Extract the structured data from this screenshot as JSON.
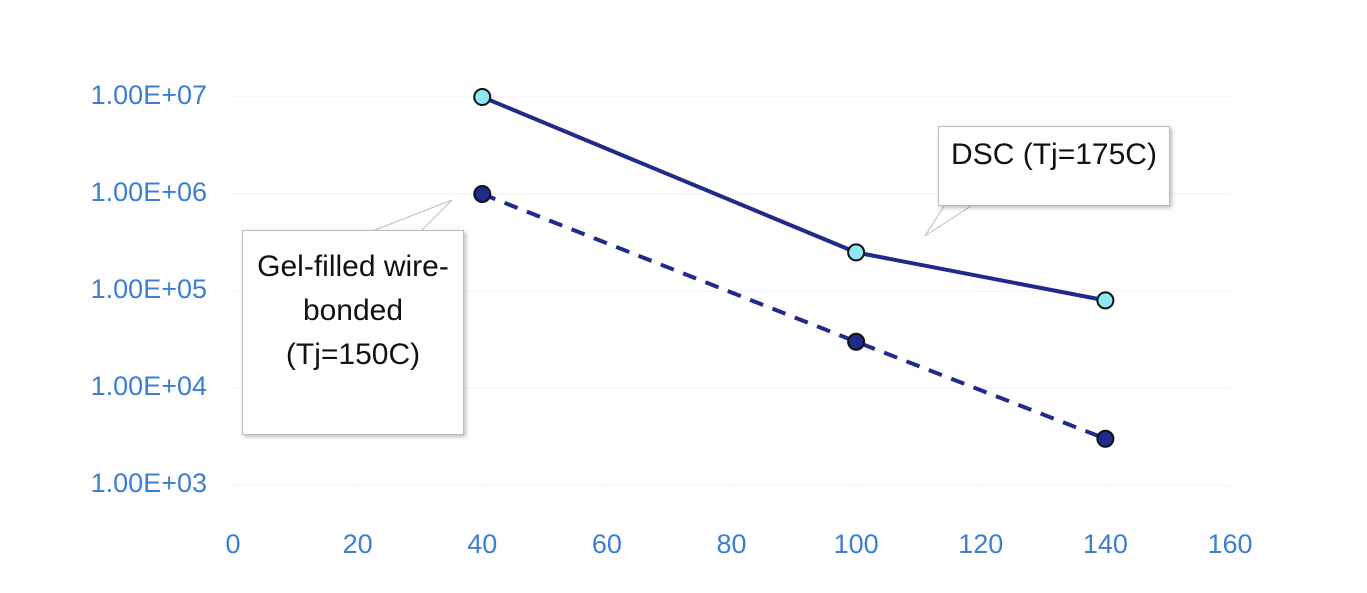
{
  "chart_data": {
    "type": "line",
    "x": [
      40,
      100,
      140
    ],
    "series": [
      {
        "name": "DSC (Tj=175C)",
        "color": "#1f2a8a",
        "marker_color": "#8ee8f2",
        "line_style": "solid",
        "values": [
          10000000,
          250000,
          80000
        ]
      },
      {
        "name": "Gel-filled wire-bonded (Tj=150C)",
        "color": "#1f2a8a",
        "marker_color": "#1f2a8a",
        "line_style": "dashed",
        "values": [
          1000000,
          30000,
          3000
        ]
      }
    ],
    "xlim": [
      0,
      160
    ],
    "xticks": [
      0,
      20,
      40,
      60,
      80,
      100,
      120,
      140,
      160
    ],
    "ylim": [
      1000,
      10000000
    ],
    "yscale": "log",
    "yticks": [
      {
        "value": 1000,
        "label": "1.00E+03"
      },
      {
        "value": 10000,
        "label": "1.00E+04"
      },
      {
        "value": 100000,
        "label": "1.00E+05"
      },
      {
        "value": 1000000,
        "label": "1.00E+06"
      },
      {
        "value": 10000000,
        "label": "1.00E+07"
      }
    ],
    "tick_color": "#3b7fd4"
  }
}
